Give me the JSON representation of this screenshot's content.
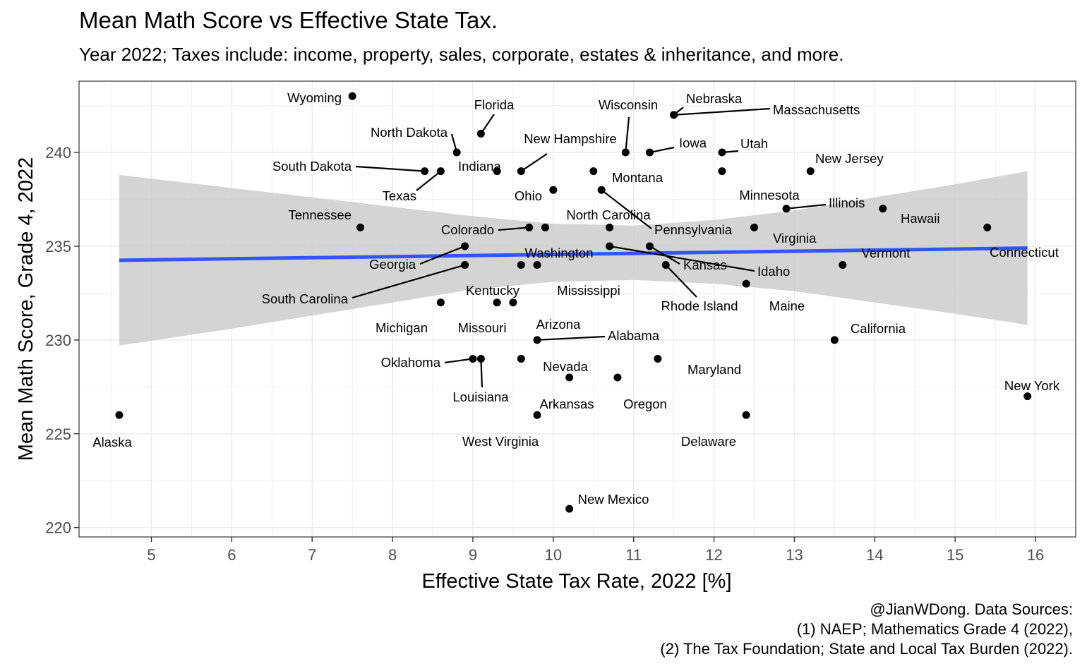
{
  "title": "Mean Math Score vs Effective State Tax.",
  "subtitle": "Year 2022; Taxes include: income, property, sales, corporate, estates & inheritance, and more.",
  "caption": [
    "@JianWDong. Data Sources:",
    "(1) NAEP; Mathematics Grade 4 (2022),",
    "(2) The Tax Foundation; State and Local Tax Burden (2022)."
  ],
  "colors": {
    "points": "#000000",
    "trend_line": "#3355ff",
    "confidence_band": "#cccccc",
    "grid": "#ebebeb",
    "panel_border": "#333333"
  },
  "chart_data": {
    "type": "scatter",
    "xlabel": "Effective State Tax Rate, 2022 [%]",
    "ylabel": "Mean Math Score, Grade 4, 2022",
    "xlim": [
      4.1,
      16.5
    ],
    "ylim": [
      219.5,
      243.8
    ],
    "x_ticks": [
      5,
      6,
      7,
      8,
      9,
      10,
      11,
      12,
      13,
      14,
      15,
      16
    ],
    "y_ticks": [
      220,
      225,
      230,
      235,
      240
    ],
    "grid": true,
    "trend": {
      "method": "linear",
      "x": [
        4.6,
        15.9
      ],
      "y": [
        234.25,
        234.9
      ]
    },
    "band": {
      "x": [
        4.6,
        6,
        7,
        8,
        9,
        10,
        11,
        12,
        13,
        14,
        15,
        15.9
      ],
      "upper": [
        238.8,
        238.1,
        237.6,
        237.1,
        236.6,
        236.2,
        236.1,
        236.4,
        236.9,
        237.6,
        238.3,
        239.0
      ],
      "lower": [
        229.7,
        230.6,
        231.3,
        232.0,
        232.7,
        233.1,
        233.2,
        233.0,
        232.6,
        232.0,
        231.4,
        230.8
      ]
    },
    "points": [
      {
        "state": "Wyoming",
        "x": 7.5,
        "y": 243
      },
      {
        "state": "Florida",
        "x": 9.1,
        "y": 241
      },
      {
        "state": "North Dakota",
        "x": 8.8,
        "y": 240
      },
      {
        "state": "Indiana",
        "x": 9.3,
        "y": 239
      },
      {
        "state": "South Dakota",
        "x": 8.4,
        "y": 239
      },
      {
        "state": "Texas",
        "x": 8.6,
        "y": 239
      },
      {
        "state": "New Hampshire",
        "x": 9.6,
        "y": 239
      },
      {
        "state": "Ohio",
        "x": 10.0,
        "y": 238
      },
      {
        "state": "Wisconsin",
        "x": 10.9,
        "y": 240
      },
      {
        "state": "Iowa",
        "x": 11.2,
        "y": 240
      },
      {
        "state": "Nebraska",
        "x": 11.5,
        "y": 242
      },
      {
        "state": "Massachusetts",
        "x": 11.5,
        "y": 242
      },
      {
        "state": "Montana",
        "x": 10.5,
        "y": 239
      },
      {
        "state": "Utah",
        "x": 12.1,
        "y": 240
      },
      {
        "state": "Minnesota",
        "x": 12.1,
        "y": 239
      },
      {
        "state": "New Jersey",
        "x": 13.2,
        "y": 239
      },
      {
        "state": "Pennsylvania",
        "x": 10.6,
        "y": 238
      },
      {
        "state": "Illinois",
        "x": 12.9,
        "y": 237
      },
      {
        "state": "Hawaii",
        "x": 14.1,
        "y": 237
      },
      {
        "state": "Tennessee",
        "x": 7.6,
        "y": 236
      },
      {
        "state": "Colorado",
        "x": 9.7,
        "y": 236
      },
      {
        "state": "Washington",
        "x": 9.9,
        "y": 236
      },
      {
        "state": "North Carolina",
        "x": 10.7,
        "y": 236
      },
      {
        "state": "Virginia",
        "x": 12.5,
        "y": 236
      },
      {
        "state": "Connecticut",
        "x": 15.4,
        "y": 236
      },
      {
        "state": "Georgia",
        "x": 8.9,
        "y": 235
      },
      {
        "state": "Idaho",
        "x": 10.7,
        "y": 235
      },
      {
        "state": "Kansas",
        "x": 11.2,
        "y": 235
      },
      {
        "state": "South Carolina",
        "x": 8.9,
        "y": 234
      },
      {
        "state": "Kentucky",
        "x": 9.6,
        "y": 234
      },
      {
        "state": "Mississippi",
        "x": 9.8,
        "y": 234
      },
      {
        "state": "Rhode Island",
        "x": 11.4,
        "y": 234
      },
      {
        "state": "Vermont",
        "x": 13.6,
        "y": 234
      },
      {
        "state": "Maine",
        "x": 12.4,
        "y": 233
      },
      {
        "state": "Michigan",
        "x": 8.6,
        "y": 232
      },
      {
        "state": "Missouri",
        "x": 9.3,
        "y": 232
      },
      {
        "state": "Arizona",
        "x": 9.5,
        "y": 232
      },
      {
        "state": "Alabama",
        "x": 9.8,
        "y": 230
      },
      {
        "state": "California",
        "x": 13.5,
        "y": 230
      },
      {
        "state": "Oklahoma",
        "x": 9.0,
        "y": 229
      },
      {
        "state": "Louisiana",
        "x": 9.1,
        "y": 229
      },
      {
        "state": "Nevada",
        "x": 9.6,
        "y": 229
      },
      {
        "state": "Maryland",
        "x": 11.3,
        "y": 229
      },
      {
        "state": "Arkansas",
        "x": 10.2,
        "y": 228
      },
      {
        "state": "Oregon",
        "x": 10.8,
        "y": 228
      },
      {
        "state": "New York",
        "x": 15.9,
        "y": 227
      },
      {
        "state": "Alaska",
        "x": 4.6,
        "y": 226
      },
      {
        "state": "West Virginia",
        "x": 9.8,
        "y": 226
      },
      {
        "state": "Delaware",
        "x": 12.4,
        "y": 226
      },
      {
        "state": "New Mexico",
        "x": 10.2,
        "y": 221
      }
    ]
  }
}
